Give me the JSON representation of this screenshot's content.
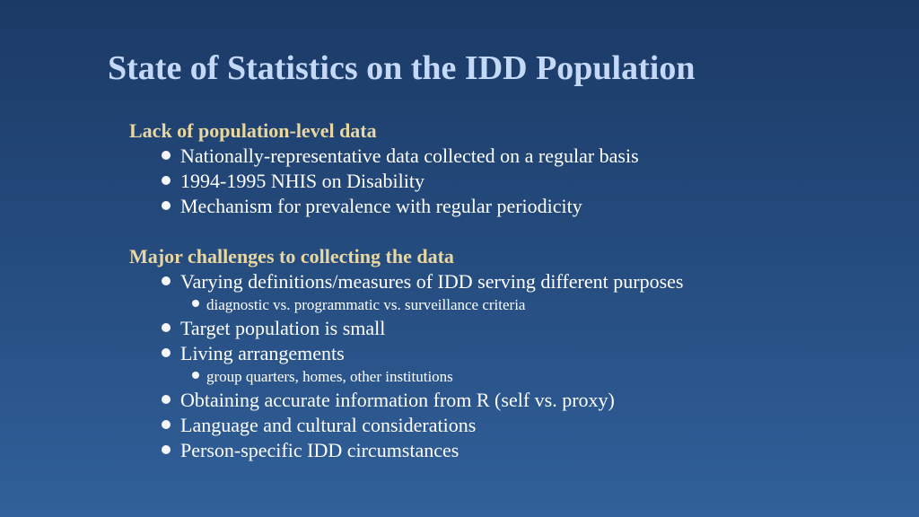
{
  "slide": {
    "title": "State of Statistics on the IDD Population"
  },
  "sections": [
    {
      "heading": "Lack of population-level data",
      "items": [
        {
          "text": "Nationally-representative data collected on a regular basis"
        },
        {
          "text": "1994-1995 NHIS on Disability"
        },
        {
          "text": "Mechanism for prevalence with regular periodicity"
        }
      ]
    },
    {
      "heading": "Major challenges to collecting the data",
      "items": [
        {
          "text": "Varying definitions/measures of IDD serving different purposes",
          "sub": [
            "diagnostic vs. programmatic vs. surveillance criteria"
          ]
        },
        {
          "text": "Target population is small"
        },
        {
          "text": "Living arrangements",
          "sub": [
            "group quarters, homes, other institutions"
          ]
        },
        {
          "text": "Obtaining accurate information from R (self vs. proxy)"
        },
        {
          "text": "Language and cultural considerations"
        },
        {
          "text": "Person-specific IDD circumstances"
        }
      ]
    }
  ]
}
